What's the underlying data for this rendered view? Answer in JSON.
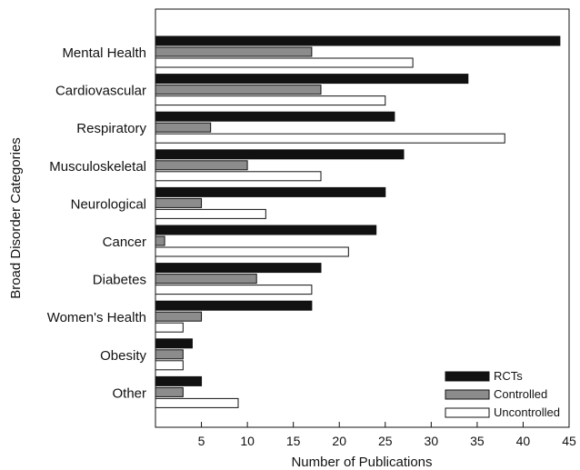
{
  "chart_data": {
    "type": "bar",
    "orientation": "horizontal",
    "categories": [
      "Mental Health",
      "Cardiovascular",
      "Respiratory",
      "Musculoskeletal",
      "Neurological",
      "Cancer",
      "Diabetes",
      "Women's Health",
      "Obesity",
      "Other"
    ],
    "series": [
      {
        "name": "RCTs",
        "color": "#111111",
        "values": [
          44,
          34,
          26,
          27,
          25,
          24,
          18,
          17,
          4,
          5
        ]
      },
      {
        "name": "Controlled",
        "color": "#8c8c8c",
        "values": [
          17,
          18,
          6,
          10,
          5,
          1,
          11,
          5,
          3,
          3
        ]
      },
      {
        "name": "Uncontrolled",
        "color": "#ffffff",
        "values": [
          28,
          25,
          38,
          18,
          12,
          21,
          17,
          3,
          3,
          9
        ]
      }
    ],
    "xlabel": "Number of Publications",
    "ylabel": "Broad Disorder Categories",
    "xlim": [
      0,
      45
    ],
    "xticks": [
      5,
      10,
      15,
      20,
      25,
      30,
      35,
      40,
      45
    ],
    "grid": false,
    "legend": "bottom-right"
  }
}
